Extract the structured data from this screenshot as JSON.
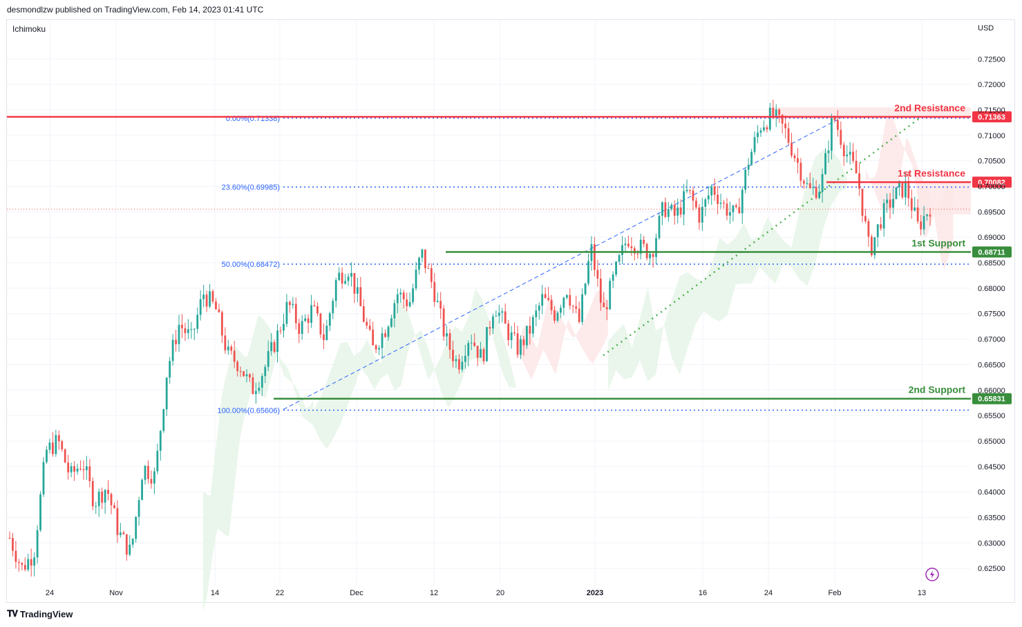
{
  "header": {
    "published": "desmondlzw published on TradingView.com, Feb 14, 2023 01:41 UTC",
    "indicator": "Ichimoku",
    "currency": "USD",
    "brand": "TradingView"
  },
  "colors": {
    "bull": "#26a69a",
    "bear": "#ef5350",
    "resistance": "#f23645",
    "support": "#388e3c",
    "fib": "#2962ff",
    "trend": "#4caf50",
    "cloud_bull": "#e8f5e9",
    "cloud_bear": "#fde8e8"
  },
  "chart_data": {
    "type": "candlestick",
    "y_axis": {
      "range": [
        0.6215,
        0.7325
      ],
      "ticks": [
        "0.72500",
        "0.72000",
        "0.71500",
        "0.71000",
        "0.70500",
        "0.70000",
        "0.69500",
        "0.69000",
        "0.68500",
        "0.68000",
        "0.67500",
        "0.67000",
        "0.66500",
        "0.66000",
        "0.65500",
        "0.65000",
        "0.64500",
        "0.64000",
        "0.63500",
        "0.63000",
        "0.62500"
      ]
    },
    "x_axis": {
      "labels": [
        {
          "text": "24",
          "bold": false
        },
        {
          "text": "Nov",
          "bold": false
        },
        {
          "text": "14",
          "bold": false
        },
        {
          "text": "22",
          "bold": false
        },
        {
          "text": "Dec",
          "bold": false
        },
        {
          "text": "12",
          "bold": false
        },
        {
          "text": "20",
          "bold": false
        },
        {
          "text": "2023",
          "bold": true
        },
        {
          "text": "16",
          "bold": false
        },
        {
          "text": "24",
          "bold": false
        },
        {
          "text": "Feb",
          "bold": false
        },
        {
          "text": "13",
          "bold": false
        }
      ]
    },
    "price_path": [
      0.631,
      0.625,
      0.628,
      0.648,
      0.65,
      0.643,
      0.646,
      0.638,
      0.641,
      0.632,
      0.628,
      0.645,
      0.643,
      0.664,
      0.673,
      0.67,
      0.679,
      0.676,
      0.667,
      0.665,
      0.66,
      0.664,
      0.67,
      0.677,
      0.672,
      0.676,
      0.67,
      0.682,
      0.684,
      0.676,
      0.668,
      0.672,
      0.679,
      0.677,
      0.687,
      0.68,
      0.67,
      0.665,
      0.671,
      0.666,
      0.677,
      0.672,
      0.668,
      0.672,
      0.678,
      0.675,
      0.68,
      0.673,
      0.688,
      0.675,
      0.683,
      0.69,
      0.688,
      0.687,
      0.696,
      0.694,
      0.699,
      0.694,
      0.7,
      0.696,
      0.694,
      0.705,
      0.712,
      0.714,
      0.711,
      0.705,
      0.699,
      0.7,
      0.714,
      0.707,
      0.702,
      0.687,
      0.694,
      0.698,
      0.7,
      0.692,
      0.696
    ],
    "annotations": [
      {
        "type": "resistance",
        "label": "2nd Resistance",
        "value": 0.71363,
        "badge": "0.71363"
      },
      {
        "type": "resistance",
        "label": "1st Resistance",
        "value": 0.70082,
        "badge": "0.70082"
      },
      {
        "type": "support",
        "label": "1st Support",
        "value": 0.68711,
        "badge": "0.68711"
      },
      {
        "type": "support",
        "label": "2nd Support",
        "value": 0.65831,
        "badge": "0.65831"
      }
    ],
    "fibonacci": [
      {
        "label": "0.00%(0.71338)",
        "value": 0.71338
      },
      {
        "label": "23.60%(0.69985)",
        "value": 0.69985
      },
      {
        "label": "50.00%(0.68472)",
        "value": 0.68472
      },
      {
        "label": "100.00%(0.65606)",
        "value": 0.65606
      }
    ],
    "current_price": 0.6955,
    "grid": true,
    "legend": "none"
  }
}
